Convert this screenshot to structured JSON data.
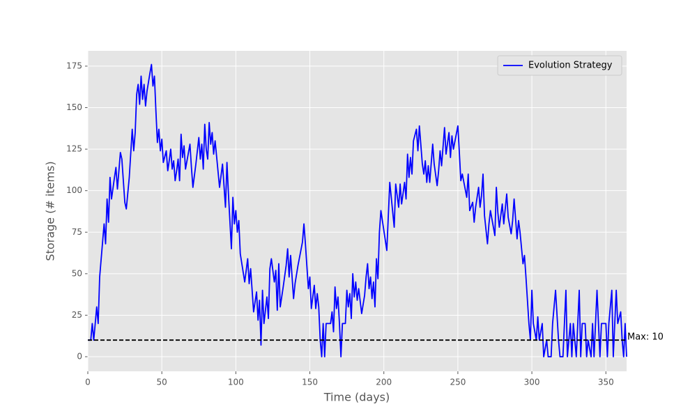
{
  "chart_data": {
    "type": "line",
    "x_label": "Time (days)",
    "y_label": "Storage (# items)",
    "x": [
      0,
      2,
      3,
      4,
      6,
      7,
      8,
      11,
      12,
      13,
      14,
      15,
      16,
      18,
      19,
      20,
      22,
      23,
      25,
      26,
      28,
      30,
      31,
      32,
      33,
      34,
      35,
      36,
      37,
      38,
      39,
      40,
      42,
      43,
      44,
      45,
      46,
      47,
      48,
      49,
      50,
      51,
      53,
      54,
      55,
      56,
      57,
      58,
      59,
      60,
      61,
      62,
      63,
      64,
      65,
      66,
      69,
      70,
      71,
      73,
      75,
      76,
      77,
      78,
      79,
      80,
      81,
      82,
      83,
      84,
      85,
      86,
      89,
      91,
      93,
      94,
      95,
      97,
      98,
      99,
      100,
      101,
      102,
      103,
      106,
      107,
      108,
      109,
      110,
      112,
      113,
      114,
      115,
      116,
      117,
      118,
      119,
      120,
      121,
      122,
      123,
      124,
      126,
      127,
      128,
      129,
      130,
      132,
      134,
      135,
      136,
      137,
      139,
      140,
      142,
      145,
      146,
      147,
      149,
      150,
      151,
      152,
      153,
      154,
      155,
      156,
      157,
      158,
      159,
      160,
      161,
      164,
      165,
      166,
      167,
      168,
      169,
      170,
      171,
      172,
      174,
      175,
      176,
      177,
      178,
      179,
      180,
      181,
      182,
      183,
      185,
      187,
      188,
      189,
      190,
      191,
      192,
      193,
      194,
      195,
      196,
      197,
      198,
      202,
      204,
      207,
      208,
      210,
      211,
      212,
      214,
      215,
      216,
      217,
      218,
      219,
      220,
      222,
      223,
      224,
      226,
      227,
      228,
      229,
      230,
      231,
      233,
      234,
      236,
      237,
      238,
      239,
      241,
      242,
      244,
      245,
      246,
      247,
      250,
      251,
      252,
      253,
      256,
      257,
      258,
      260,
      261,
      262,
      264,
      265,
      266,
      267,
      268,
      270,
      271,
      272,
      275,
      276,
      277,
      278,
      280,
      281,
      283,
      284,
      286,
      287,
      288,
      290,
      291,
      292,
      294,
      295,
      296,
      298,
      299,
      300,
      301,
      303,
      304,
      305,
      307,
      308,
      310,
      311,
      313,
      314,
      316,
      318,
      319,
      320,
      321,
      323,
      324,
      326,
      327,
      328,
      330,
      332,
      333,
      334,
      336,
      337,
      338,
      340,
      341,
      342,
      344,
      346,
      347,
      348,
      350,
      351,
      352,
      354,
      355,
      357,
      358,
      360,
      361,
      362,
      363,
      364
    ],
    "series": [
      {
        "name": "Evolution Strategy",
        "color": "#0000ff",
        "values": [
          10,
          10,
          20,
          10,
          30,
          20,
          48,
          80,
          68,
          95,
          81,
          108,
          95,
          108,
          114,
          101,
          123,
          119,
          93,
          89,
          108,
          137,
          124,
          135,
          158,
          164,
          152,
          169,
          155,
          164,
          151,
          160,
          171,
          176,
          163,
          169,
          148,
          129,
          137,
          124,
          131,
          117,
          124,
          112,
          118,
          125,
          113,
          118,
          106,
          112,
          119,
          106,
          134,
          120,
          127,
          113,
          128,
          114,
          102,
          116,
          132,
          119,
          128,
          113,
          140,
          125,
          119,
          141,
          128,
          135,
          122,
          130,
          102,
          116,
          90,
          117,
          98,
          65,
          96,
          80,
          88,
          75,
          82,
          62,
          45,
          52,
          59,
          44,
          53,
          27,
          33,
          39,
          22,
          34,
          7,
          40,
          20,
          28,
          36,
          23,
          53,
          59,
          45,
          52,
          28,
          56,
          30,
          42,
          55,
          65,
          48,
          61,
          35,
          44,
          55,
          69,
          80,
          68,
          41,
          48,
          29,
          36,
          43,
          29,
          38,
          30,
          10,
          0,
          20,
          0,
          20,
          20,
          27,
          15,
          42,
          29,
          36,
          20,
          0,
          20,
          20,
          40,
          30,
          38,
          23,
          50,
          36,
          45,
          34,
          41,
          26,
          37,
          48,
          56,
          41,
          48,
          35,
          45,
          30,
          59,
          47,
          75,
          88,
          64,
          105,
          78,
          104,
          90,
          104,
          92,
          105,
          95,
          122,
          108,
          120,
          110,
          130,
          137,
          124,
          139,
          116,
          110,
          118,
          105,
          115,
          105,
          128,
          116,
          103,
          112,
          124,
          115,
          138,
          122,
          135,
          120,
          133,
          125,
          139,
          123,
          106,
          110,
          96,
          110,
          88,
          93,
          81,
          90,
          102,
          90,
          97,
          110,
          85,
          68,
          80,
          88,
          73,
          102,
          87,
          78,
          92,
          80,
          98,
          84,
          74,
          82,
          95,
          71,
          82,
          75,
          56,
          61,
          48,
          20,
          10,
          40,
          20,
          10,
          24,
          10,
          20,
          0,
          10,
          0,
          0,
          20,
          40,
          10,
          0,
          0,
          0,
          40,
          0,
          20,
          0,
          20,
          0,
          40,
          0,
          20,
          20,
          0,
          10,
          0,
          20,
          0,
          40,
          0,
          20,
          20,
          20,
          0,
          20,
          40,
          0,
          40,
          20,
          27,
          10,
          0,
          20,
          0
        ]
      }
    ],
    "max_line": {
      "value": 10,
      "label": "Max: 10"
    },
    "xlim": [
      0,
      364
    ],
    "xticks": [
      0,
      50,
      100,
      150,
      200,
      250,
      300,
      350
    ],
    "ylim": [
      -8.8,
      184.2
    ],
    "yticks": [
      0,
      25,
      50,
      75,
      100,
      125,
      150,
      175
    ],
    "grid": true,
    "legend": "upper right"
  }
}
